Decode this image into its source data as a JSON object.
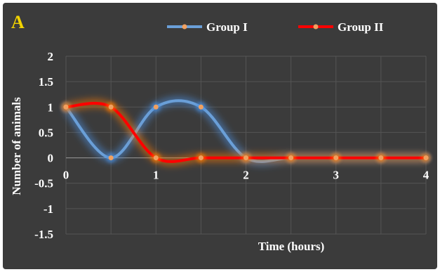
{
  "panel_label": "A",
  "colors": {
    "background": "#3b3b3b",
    "grid": "#555555",
    "zero_line": "#9a9a9a",
    "text": "#ffffff",
    "panel_letter": "#f2d300",
    "group1": "#6a9fd8",
    "group1_glow": "#4a90e2",
    "group2": "#ff0000",
    "group2_glow": "#ff7a00",
    "marker": "#f0a060"
  },
  "chart_data": {
    "type": "line",
    "smooth": true,
    "xlabel": "Time (hours)",
    "ylabel": "Number of animals",
    "xlim": [
      0,
      4
    ],
    "ylim": [
      -1.5,
      2
    ],
    "x_ticks": [
      "0",
      "1",
      "2",
      "3",
      "4"
    ],
    "y_ticks": [
      "2",
      "1.5",
      "1",
      "0.5",
      "0",
      "-0.5",
      "-1",
      "-1.5"
    ],
    "x": [
      0,
      0.5,
      1,
      1.5,
      2,
      2.5,
      3,
      3.5,
      4
    ],
    "grid": true,
    "legend_position": "top",
    "series": [
      {
        "name": "Group I",
        "color": "#6a9fd8",
        "values": [
          1,
          0,
          1,
          1,
          0,
          0,
          0,
          0,
          0
        ]
      },
      {
        "name": "Group II",
        "color": "#ff0000",
        "values": [
          1,
          1,
          0,
          0,
          0,
          0,
          0,
          0,
          0
        ]
      }
    ]
  }
}
